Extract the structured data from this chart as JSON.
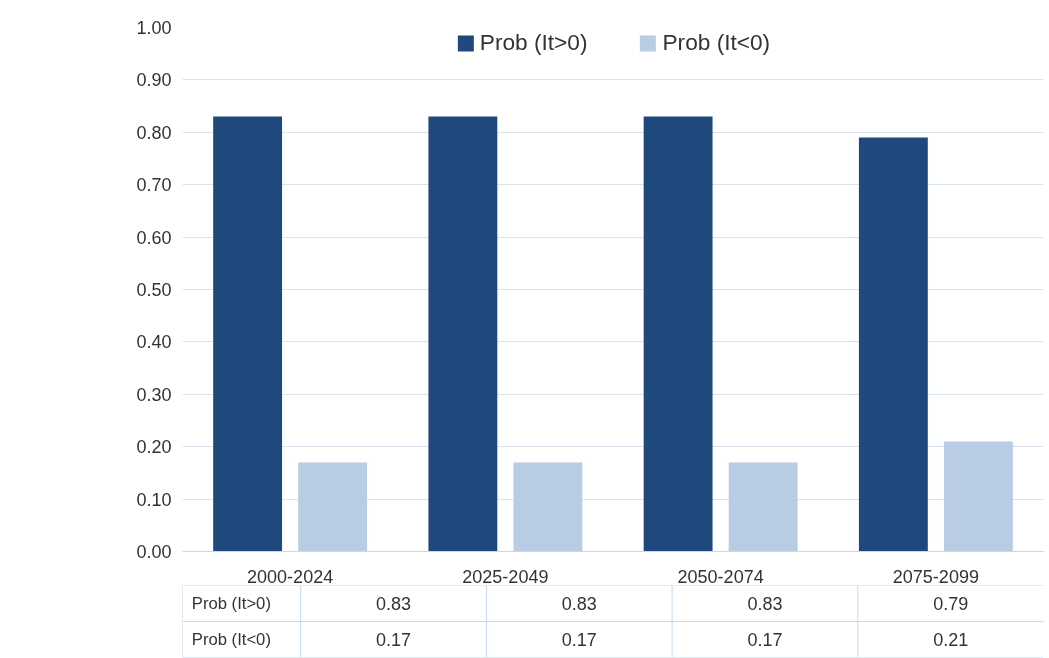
{
  "chart_data": {
    "type": "bar",
    "categories": [
      "2000-2024",
      "2025-2049",
      "2050-2074",
      "2075-2099"
    ],
    "series": [
      {
        "name": "Prob (It>0)",
        "color": "#1f497d",
        "values": [
          0.83,
          0.83,
          0.83,
          0.79
        ]
      },
      {
        "name": "Prob (It<0)",
        "color": "#b8cce4",
        "values": [
          0.17,
          0.17,
          0.17,
          0.21
        ]
      }
    ],
    "ylim": [
      0,
      1
    ],
    "yticks": [
      {
        "value": 0,
        "label": "0.00"
      },
      {
        "value": 0.1,
        "label": "0.10"
      },
      {
        "value": 0.2,
        "label": "0.20"
      },
      {
        "value": 0.3,
        "label": "0.30"
      },
      {
        "value": 0.4,
        "label": "0.40"
      },
      {
        "value": 0.5,
        "label": "0.50"
      },
      {
        "value": 0.6,
        "label": "0.60"
      },
      {
        "value": 0.7,
        "label": "0.70"
      },
      {
        "value": 0.8,
        "label": "0.80"
      },
      {
        "value": 0.9,
        "label": "0.90"
      },
      {
        "value": 1,
        "label": "1.00"
      }
    ],
    "grid": "y",
    "legend": "top",
    "data_labels": true
  }
}
